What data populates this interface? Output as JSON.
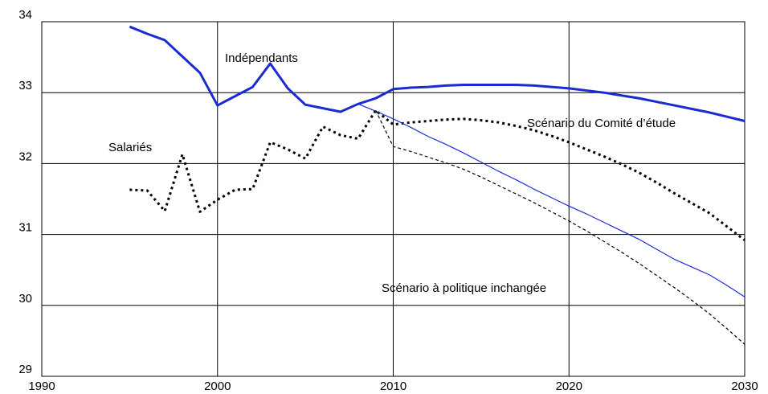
{
  "chart_data": {
    "type": "line",
    "x": [
      1995,
      1996,
      1997,
      1998,
      1999,
      2000,
      2001,
      2002,
      2003,
      2004,
      2005,
      2006,
      2007,
      2008,
      2009,
      2010,
      2011,
      2012,
      2013,
      2014,
      2015,
      2016,
      2017,
      2018,
      2019,
      2020,
      2021,
      2022,
      2023,
      2024,
      2025,
      2026,
      2027,
      2028,
      2029,
      2030
    ],
    "series": [
      {
        "name": "Indépendants",
        "color": "#1c2bd1",
        "weight": "thick",
        "dash": "solid",
        "values": [
          33.93,
          33.83,
          33.74,
          33.51,
          33.28,
          32.82,
          32.95,
          33.08,
          33.41,
          33.06,
          32.83,
          32.78,
          32.73,
          32.84,
          32.92,
          33.05,
          33.07,
          33.08,
          33.1,
          33.11,
          33.11,
          33.11,
          33.11,
          33.1,
          33.08,
          33.06,
          33.03,
          33.0,
          32.96,
          32.92,
          32.87,
          32.82,
          32.77,
          32.72,
          32.66,
          32.6
        ]
      },
      {
        "name": "Salariés",
        "color": "#000000",
        "weight": "thick",
        "dash": "dotted",
        "values": [
          31.63,
          31.62,
          31.33,
          32.13,
          31.32,
          31.49,
          31.63,
          31.64,
          32.3,
          32.2,
          32.07,
          32.52,
          32.4,
          32.35,
          32.75,
          32.55,
          32.58,
          32.6,
          32.62,
          32.63,
          32.61,
          32.58,
          32.53,
          32.47,
          32.39,
          32.3,
          32.2,
          32.1,
          31.99,
          31.87,
          31.73,
          31.58,
          31.44,
          31.3,
          31.11,
          30.92
        ]
      },
      {
        "color": "#1c2bd1",
        "weight": "thin",
        "dash": "solid",
        "values": [
          null,
          null,
          null,
          null,
          null,
          null,
          null,
          null,
          null,
          null,
          null,
          null,
          null,
          32.84,
          32.74,
          32.63,
          32.51,
          32.38,
          32.27,
          32.15,
          32.02,
          31.89,
          31.77,
          31.64,
          31.52,
          31.4,
          31.29,
          31.17,
          31.05,
          30.93,
          30.79,
          30.65,
          30.54,
          30.43,
          30.28,
          30.12
        ]
      },
      {
        "color": "#000000",
        "weight": "thin",
        "dash": "dashed",
        "values": [
          null,
          null,
          null,
          null,
          null,
          null,
          null,
          null,
          null,
          null,
          null,
          null,
          null,
          null,
          32.75,
          32.24,
          32.17,
          32.09,
          32.01,
          31.92,
          31.81,
          31.69,
          31.57,
          31.45,
          31.32,
          31.19,
          31.05,
          30.9,
          30.75,
          30.59,
          30.42,
          30.25,
          30.07,
          29.88,
          29.67,
          29.45
        ]
      }
    ],
    "annotations": [
      "Scénario du Comité d’étude",
      "Scénario à politique inchangée"
    ],
    "xlim": [
      1990,
      2030
    ],
    "xticks": [
      1990,
      2000,
      2010,
      2020,
      2030
    ],
    "ylim": [
      29,
      34
    ],
    "yticks": [
      29,
      30,
      31,
      32,
      33,
      34
    ],
    "grid": true
  }
}
